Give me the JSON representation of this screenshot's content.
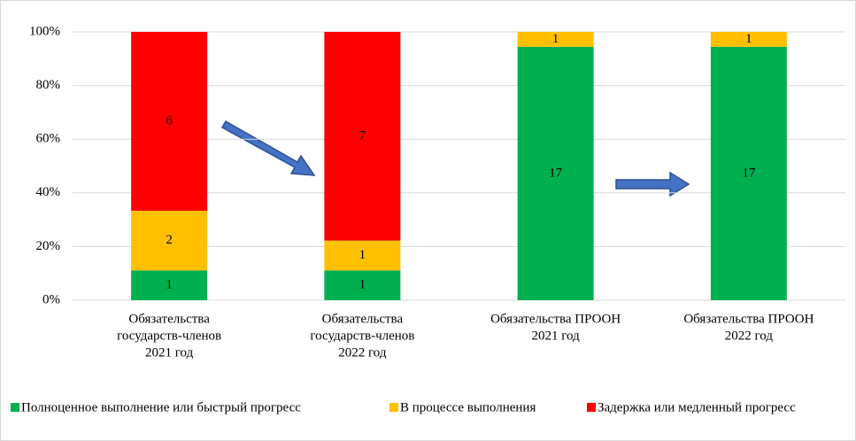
{
  "chart_data": {
    "type": "bar",
    "stacked": "percent",
    "categories": [
      [
        "Обязательства",
        "государств-членов",
        "2021 год"
      ],
      [
        "Обязательства",
        "государств-членов",
        "2022 год"
      ],
      [
        "Обязательства ПРООН",
        "2021 год"
      ],
      [
        "Обязательства ПРООН",
        "2022 год"
      ]
    ],
    "series": [
      {
        "name": "Полноценное выполнение или быстрый прогресс",
        "color": "#00b050",
        "values": [
          1,
          1,
          17,
          17
        ]
      },
      {
        "name": "В процессе выполнения",
        "color": "#ffc000",
        "values": [
          2,
          1,
          1,
          1
        ]
      },
      {
        "name": "Задержка или медленный прогресс",
        "color": "#ff0000",
        "values": [
          6,
          7,
          null,
          null
        ]
      }
    ],
    "ylim": [
      0,
      100
    ],
    "yticks": [
      {
        "value": 0,
        "label": "0%"
      },
      {
        "value": 20,
        "label": "20%"
      },
      {
        "value": 40,
        "label": "40%"
      },
      {
        "value": 60,
        "label": "60%"
      },
      {
        "value": 80,
        "label": "80%"
      },
      {
        "value": 100,
        "label": "100%"
      }
    ],
    "grid": true,
    "legend": "bottom"
  }
}
